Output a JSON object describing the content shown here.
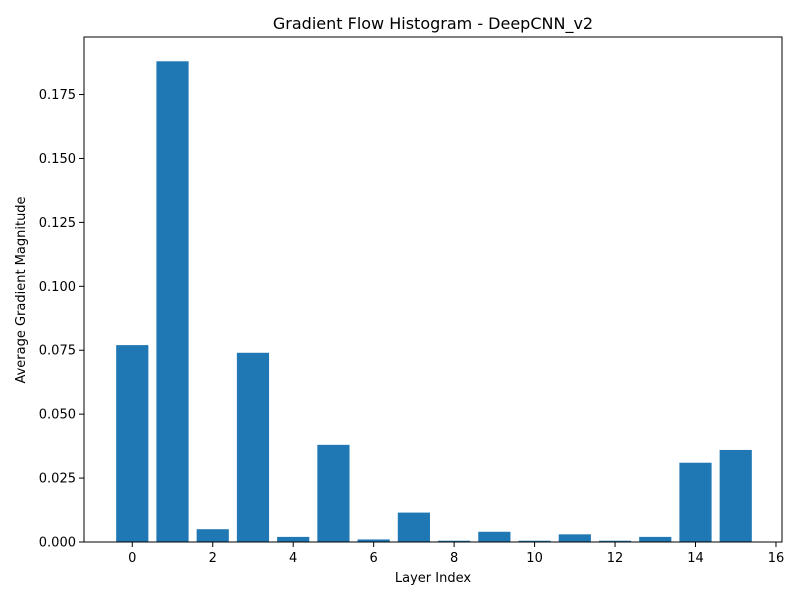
{
  "chart_data": {
    "type": "bar",
    "title": "Gradient Flow Histogram - DeepCNN_v2",
    "xlabel": "Layer Index",
    "ylabel": "Average Gradient Magnitude",
    "x": [
      0,
      1,
      2,
      3,
      4,
      5,
      6,
      7,
      8,
      9,
      10,
      11,
      12,
      13,
      14,
      15
    ],
    "values": [
      0.077,
      0.188,
      0.005,
      0.074,
      0.002,
      0.038,
      0.001,
      0.0115,
      0.0005,
      0.004,
      0.0005,
      0.003,
      0.0005,
      0.002,
      0.031,
      0.036
    ],
    "xlim": [
      -1.2,
      16.15
    ],
    "ylim": [
      0,
      0.1975
    ],
    "xticks": [
      0,
      2,
      4,
      6,
      8,
      10,
      12,
      14,
      16
    ],
    "xtick_labels": [
      "0",
      "2",
      "4",
      "6",
      "8",
      "10",
      "12",
      "14",
      "16"
    ],
    "yticks": [
      0.0,
      0.025,
      0.05,
      0.075,
      0.1,
      0.125,
      0.15,
      0.175
    ],
    "ytick_labels": [
      "0.000",
      "0.025",
      "0.050",
      "0.075",
      "0.100",
      "0.125",
      "0.150",
      "0.175"
    ],
    "bar_color": "#1f77b4",
    "grid": false,
    "legend": "none"
  }
}
